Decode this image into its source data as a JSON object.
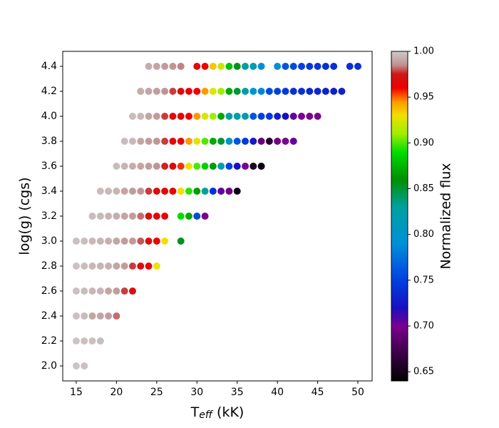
{
  "chart_data": {
    "type": "scatter",
    "xlabel": {
      "main": "T",
      "sub": "eff",
      "unit": " (kK)"
    },
    "ylabel": "log(g) (cgs)",
    "colorbar_label": "Normalized flux",
    "xlim": [
      13.32,
      51.77
    ],
    "ylim": [
      1.88,
      4.52
    ],
    "xticks": [
      15,
      20,
      25,
      30,
      35,
      40,
      45,
      50
    ],
    "yticks": [
      {
        "value": 2,
        "label": "2.0"
      },
      2.2,
      2.4,
      2.6,
      2.8,
      {
        "value": 3,
        "label": "3.0"
      },
      3.2,
      3.4,
      3.6,
      3.8,
      {
        "value": 4,
        "label": "4.0"
      },
      4.2,
      4.4
    ],
    "clim": [
      0.64,
      1.0
    ],
    "cticks": [
      0.65,
      {
        "value": 0.7,
        "label": "0.70"
      },
      0.75,
      {
        "value": 0.8,
        "label": "0.80"
      },
      0.85,
      {
        "value": 0.9,
        "label": "0.90"
      },
      0.95,
      {
        "value": 1,
        "label": "1.00"
      }
    ],
    "colormap": [
      [
        0.64,
        "#000000"
      ],
      [
        0.67,
        "#3a0048"
      ],
      [
        0.7,
        "#7a0090"
      ],
      [
        0.72,
        "#1810c0"
      ],
      [
        0.75,
        "#0040e0"
      ],
      [
        0.79,
        "#0090d8"
      ],
      [
        0.83,
        "#00a0a0"
      ],
      [
        0.86,
        "#009000"
      ],
      [
        0.89,
        "#00dd00"
      ],
      [
        0.91,
        "#a0ee00"
      ],
      [
        0.93,
        "#f0e000"
      ],
      [
        0.945,
        "#ff9900"
      ],
      [
        0.96,
        "#ee0000"
      ],
      [
        0.975,
        "#cc1818"
      ],
      [
        0.985,
        "#c09090"
      ],
      [
        1.0,
        "#cccccc"
      ]
    ],
    "x": [
      15,
      16,
      15,
      16,
      17,
      18,
      15,
      16,
      17,
      18,
      19,
      20,
      15,
      16,
      17,
      18,
      19,
      20,
      21,
      22,
      15,
      16,
      17,
      18,
      19,
      20,
      21,
      22,
      23,
      24,
      25,
      15,
      16,
      17,
      18,
      19,
      20,
      21,
      22,
      23,
      24,
      25,
      26,
      28,
      17,
      18,
      19,
      20,
      21,
      22,
      23,
      24,
      25,
      26,
      28,
      29,
      30,
      31,
      18,
      19,
      20,
      21,
      22,
      23,
      24,
      25,
      26,
      27,
      28,
      29,
      30,
      31,
      32,
      33,
      34,
      35,
      20,
      21,
      22,
      23,
      24,
      25,
      26,
      27,
      28,
      29,
      30,
      31,
      32,
      33,
      34,
      35,
      36,
      37,
      38,
      21,
      22,
      23,
      24,
      25,
      26,
      27,
      28,
      29,
      30,
      31,
      32,
      33,
      34,
      35,
      36,
      37,
      38,
      39,
      40,
      41,
      42,
      22,
      23,
      24,
      25,
      26,
      27,
      28,
      29,
      30,
      31,
      32,
      33,
      34,
      35,
      36,
      37,
      38,
      39,
      40,
      41,
      42,
      43,
      44,
      45,
      23,
      24,
      25,
      26,
      27,
      28,
      29,
      30,
      31,
      32,
      33,
      34,
      35,
      36,
      37,
      38,
      39,
      40,
      41,
      42,
      43,
      44,
      45,
      46,
      47,
      48,
      24,
      25,
      26,
      27,
      28,
      30,
      31,
      32,
      33,
      34,
      35,
      36,
      37,
      38,
      40,
      41,
      42,
      43,
      44,
      45,
      46,
      47,
      49,
      50
    ],
    "values": [
      2.0,
      2.0,
      2.2,
      2.2,
      2.2,
      2.2,
      2.4,
      2.4,
      2.4,
      2.4,
      2.4,
      2.4,
      2.6,
      2.6,
      2.6,
      2.6,
      2.6,
      2.6,
      2.6,
      2.6,
      2.8,
      2.8,
      2.8,
      2.8,
      2.8,
      2.8,
      2.8,
      2.8,
      2.8,
      2.8,
      2.8,
      3.0,
      3.0,
      3.0,
      3.0,
      3.0,
      3.0,
      3.0,
      3.0,
      3.0,
      3.0,
      3.0,
      3.0,
      3.0,
      3.2,
      3.2,
      3.2,
      3.2,
      3.2,
      3.2,
      3.2,
      3.2,
      3.2,
      3.2,
      3.2,
      3.2,
      3.2,
      3.2,
      3.4,
      3.4,
      3.4,
      3.4,
      3.4,
      3.4,
      3.4,
      3.4,
      3.4,
      3.4,
      3.4,
      3.4,
      3.4,
      3.4,
      3.4,
      3.4,
      3.4,
      3.4,
      3.6,
      3.6,
      3.6,
      3.6,
      3.6,
      3.6,
      3.6,
      3.6,
      3.6,
      3.6,
      3.6,
      3.6,
      3.6,
      3.6,
      3.6,
      3.6,
      3.6,
      3.6,
      3.6,
      3.8,
      3.8,
      3.8,
      3.8,
      3.8,
      3.8,
      3.8,
      3.8,
      3.8,
      3.8,
      3.8,
      3.8,
      3.8,
      3.8,
      3.8,
      3.8,
      3.8,
      3.8,
      3.8,
      3.8,
      3.8,
      3.8,
      4.0,
      4.0,
      4.0,
      4.0,
      4.0,
      4.0,
      4.0,
      4.0,
      4.0,
      4.0,
      4.0,
      4.0,
      4.0,
      4.0,
      4.0,
      4.0,
      4.0,
      4.0,
      4.0,
      4.0,
      4.0,
      4.0,
      4.0,
      4.0,
      4.2,
      4.2,
      4.2,
      4.2,
      4.2,
      4.2,
      4.2,
      4.2,
      4.2,
      4.2,
      4.2,
      4.2,
      4.2,
      4.2,
      4.2,
      4.2,
      4.2,
      4.2,
      4.2,
      4.2,
      4.2,
      4.2,
      4.2,
      4.2,
      4.2,
      4.2,
      4.4,
      4.4,
      4.4,
      4.4,
      4.4,
      4.4,
      4.4,
      4.4,
      4.4,
      4.4,
      4.4,
      4.4,
      4.4,
      4.4,
      4.4,
      4.4,
      4.4,
      4.4,
      4.4,
      4.4,
      4.4,
      4.4,
      4.4,
      4.4
    ],
    "flux": [
      0.998,
      0.997,
      0.998,
      0.997,
      0.997,
      0.996,
      0.997,
      0.996,
      0.99,
      0.99,
      0.988,
      0.982,
      0.997,
      0.996,
      0.995,
      0.994,
      0.99,
      0.988,
      0.978,
      0.968,
      0.997,
      0.996,
      0.995,
      0.994,
      0.993,
      0.99,
      0.988,
      0.978,
      0.966,
      0.962,
      0.93,
      0.997,
      0.996,
      0.995,
      0.994,
      0.993,
      0.99,
      0.988,
      0.987,
      0.98,
      0.967,
      0.963,
      0.93,
      0.855,
      0.996,
      0.995,
      0.994,
      0.992,
      0.99,
      0.988,
      0.982,
      0.968,
      0.964,
      0.962,
      0.89,
      0.87,
      0.755,
      0.7,
      0.996,
      0.995,
      0.994,
      0.99,
      0.988,
      0.986,
      0.978,
      0.966,
      0.963,
      0.96,
      0.93,
      0.895,
      0.865,
      0.83,
      0.74,
      0.705,
      0.695,
      0.65,
      0.996,
      0.994,
      0.992,
      0.99,
      0.988,
      0.986,
      0.976,
      0.966,
      0.955,
      0.93,
      0.9,
      0.885,
      0.865,
      0.82,
      0.75,
      0.72,
      0.7,
      0.655,
      0.645,
      0.996,
      0.995,
      0.99,
      0.988,
      0.986,
      0.978,
      0.966,
      0.962,
      0.945,
      0.925,
      0.9,
      0.87,
      0.85,
      0.8,
      0.76,
      0.745,
      0.725,
      0.69,
      0.66,
      0.695,
      0.7,
      0.705,
      0.996,
      0.995,
      0.99,
      0.988,
      0.978,
      0.966,
      0.962,
      0.96,
      0.945,
      0.925,
      0.91,
      0.87,
      0.83,
      0.825,
      0.82,
      0.76,
      0.75,
      0.745,
      0.73,
      0.72,
      0.705,
      0.7,
      0.7,
      0.7,
      0.992,
      0.99,
      0.988,
      0.986,
      0.978,
      0.966,
      0.962,
      0.96,
      0.945,
      0.925,
      0.91,
      0.87,
      0.85,
      0.82,
      0.79,
      0.785,
      0.755,
      0.75,
      0.745,
      0.74,
      0.74,
      0.735,
      0.735,
      0.73,
      0.73,
      0.73,
      0.992,
      0.99,
      0.988,
      0.986,
      0.984,
      0.966,
      0.962,
      0.935,
      0.92,
      0.88,
      0.855,
      0.83,
      0.82,
      0.79,
      0.79,
      0.76,
      0.755,
      0.75,
      0.745,
      0.745,
      0.74,
      0.74,
      0.74,
      0.74
    ]
  }
}
